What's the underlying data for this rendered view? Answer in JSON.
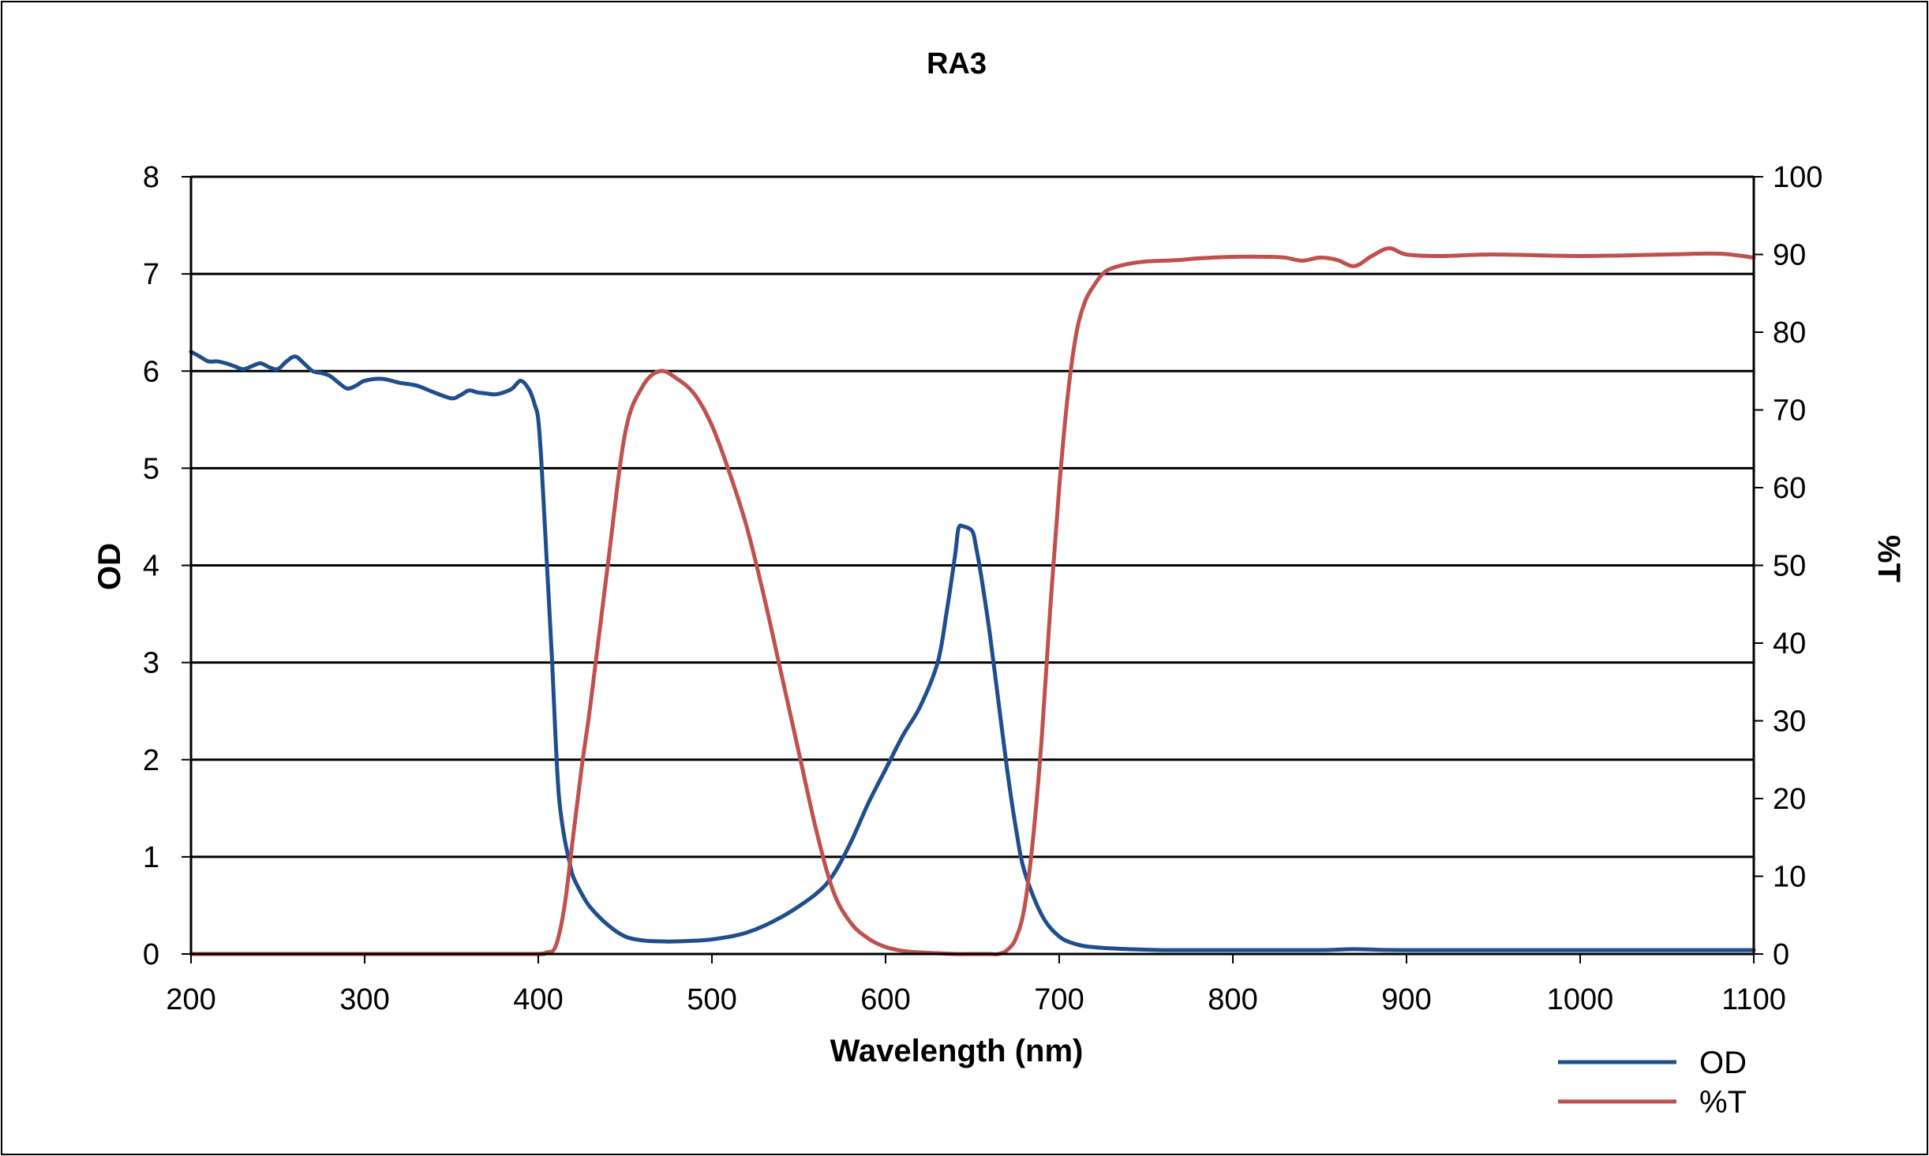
{
  "chart_data": {
    "type": "line",
    "title": "RA3",
    "xlabel": "Wavelength (nm)",
    "ylabel": "OD",
    "y2label": "%T",
    "xlim": [
      200,
      1100
    ],
    "ylim": [
      0,
      8
    ],
    "y2lim": [
      0,
      100
    ],
    "xticks": [
      "200",
      "300",
      "400",
      "500",
      "600",
      "700",
      "800",
      "900",
      "1000",
      "1100"
    ],
    "yticks": [
      "0",
      "1",
      "2",
      "3",
      "4",
      "5",
      "6",
      "7",
      "8"
    ],
    "y2ticks": [
      "0",
      "10",
      "20",
      "30",
      "40",
      "50",
      "60",
      "70",
      "80",
      "90",
      "100"
    ],
    "grid": true,
    "legend_position": "bottom-right",
    "series": [
      {
        "name": "OD",
        "axis": "left",
        "color": "#1f4e8c",
        "x": [
          200,
          205,
          210,
          215,
          220,
          225,
          230,
          235,
          240,
          245,
          250,
          255,
          260,
          265,
          270,
          275,
          280,
          285,
          290,
          295,
          300,
          310,
          320,
          330,
          340,
          350,
          355,
          360,
          365,
          370,
          375,
          380,
          385,
          390,
          395,
          398,
          400,
          402,
          405,
          408,
          410,
          412,
          415,
          418,
          420,
          425,
          430,
          440,
          450,
          460,
          470,
          480,
          500,
          520,
          540,
          560,
          570,
          580,
          590,
          600,
          610,
          620,
          630,
          635,
          640,
          642,
          645,
          650,
          652,
          655,
          660,
          665,
          670,
          675,
          680,
          690,
          700,
          710,
          720,
          740,
          760,
          800,
          850,
          870,
          900,
          1000,
          1100
        ],
        "y": [
          6.2,
          6.15,
          6.1,
          6.1,
          6.08,
          6.05,
          6.02,
          6.05,
          6.08,
          6.04,
          6.02,
          6.1,
          6.15,
          6.08,
          6.0,
          5.98,
          5.95,
          5.88,
          5.82,
          5.85,
          5.9,
          5.92,
          5.88,
          5.85,
          5.78,
          5.72,
          5.75,
          5.8,
          5.78,
          5.77,
          5.76,
          5.78,
          5.82,
          5.9,
          5.8,
          5.65,
          5.5,
          5.0,
          4.0,
          3.0,
          2.2,
          1.6,
          1.2,
          0.95,
          0.8,
          0.62,
          0.48,
          0.3,
          0.18,
          0.14,
          0.13,
          0.13,
          0.15,
          0.22,
          0.38,
          0.62,
          0.82,
          1.15,
          1.55,
          1.9,
          2.25,
          2.55,
          3.0,
          3.5,
          4.1,
          4.38,
          4.4,
          4.35,
          4.2,
          3.9,
          3.3,
          2.6,
          1.9,
          1.3,
          0.85,
          0.4,
          0.18,
          0.1,
          0.07,
          0.05,
          0.04,
          0.04,
          0.04,
          0.05,
          0.04,
          0.04,
          0.04
        ]
      },
      {
        "name": "%T",
        "axis": "right",
        "color": "#c0504d",
        "x": [
          200,
          300,
          395,
          400,
          405,
          410,
          415,
          420,
          425,
          430,
          440,
          450,
          460,
          470,
          480,
          490,
          500,
          510,
          520,
          530,
          540,
          550,
          560,
          570,
          580,
          590,
          600,
          610,
          620,
          630,
          640,
          650,
          660,
          665,
          670,
          675,
          680,
          685,
          690,
          695,
          700,
          705,
          710,
          715,
          720,
          725,
          730,
          740,
          750,
          760,
          770,
          780,
          800,
          820,
          830,
          840,
          850,
          860,
          870,
          880,
          890,
          900,
          920,
          950,
          1000,
          1050,
          1080,
          1100
        ],
        "y": [
          0,
          0,
          0,
          0,
          0.2,
          1,
          6,
          15,
          24,
          32,
          50,
          67,
          73,
          75,
          74,
          72,
          68,
          62,
          55,
          46,
          36,
          26,
          16,
          8,
          4,
          2,
          0.9,
          0.4,
          0.2,
          0.1,
          0,
          0,
          0,
          0,
          0.5,
          2,
          6,
          15,
          28,
          45,
          60,
          72,
          80,
          84,
          86,
          87.5,
          88.2,
          88.8,
          89.1,
          89.2,
          89.3,
          89.5,
          89.7,
          89.7,
          89.6,
          89.2,
          89.6,
          89.3,
          88.5,
          89.8,
          90.8,
          90.0,
          89.8,
          90.0,
          89.8,
          90.0,
          90.1,
          89.6
        ]
      }
    ]
  }
}
